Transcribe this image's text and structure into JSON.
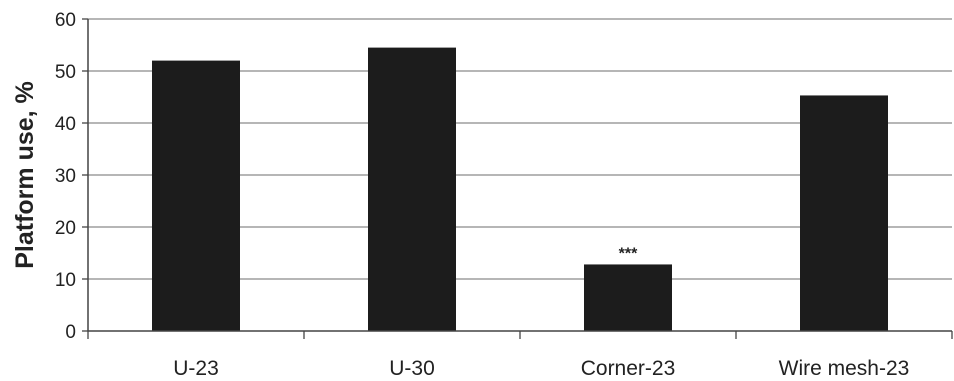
{
  "chart_data": {
    "type": "bar",
    "title": "",
    "xlabel": "",
    "ylabel": "Platform use, %",
    "ylim": [
      0,
      60
    ],
    "yticks": [
      0,
      10,
      20,
      30,
      40,
      50,
      60
    ],
    "grid": true,
    "categories": [
      "U-23",
      "U-30",
      "Corner-23",
      "Wire mesh-23"
    ],
    "values": [
      52,
      54.5,
      12.8,
      45.3
    ],
    "annotations": [
      "",
      "",
      "***",
      ""
    ],
    "colors": {
      "bar": "#1c1c1c",
      "grid": "#8a8a8a",
      "axis": "#444444"
    }
  }
}
